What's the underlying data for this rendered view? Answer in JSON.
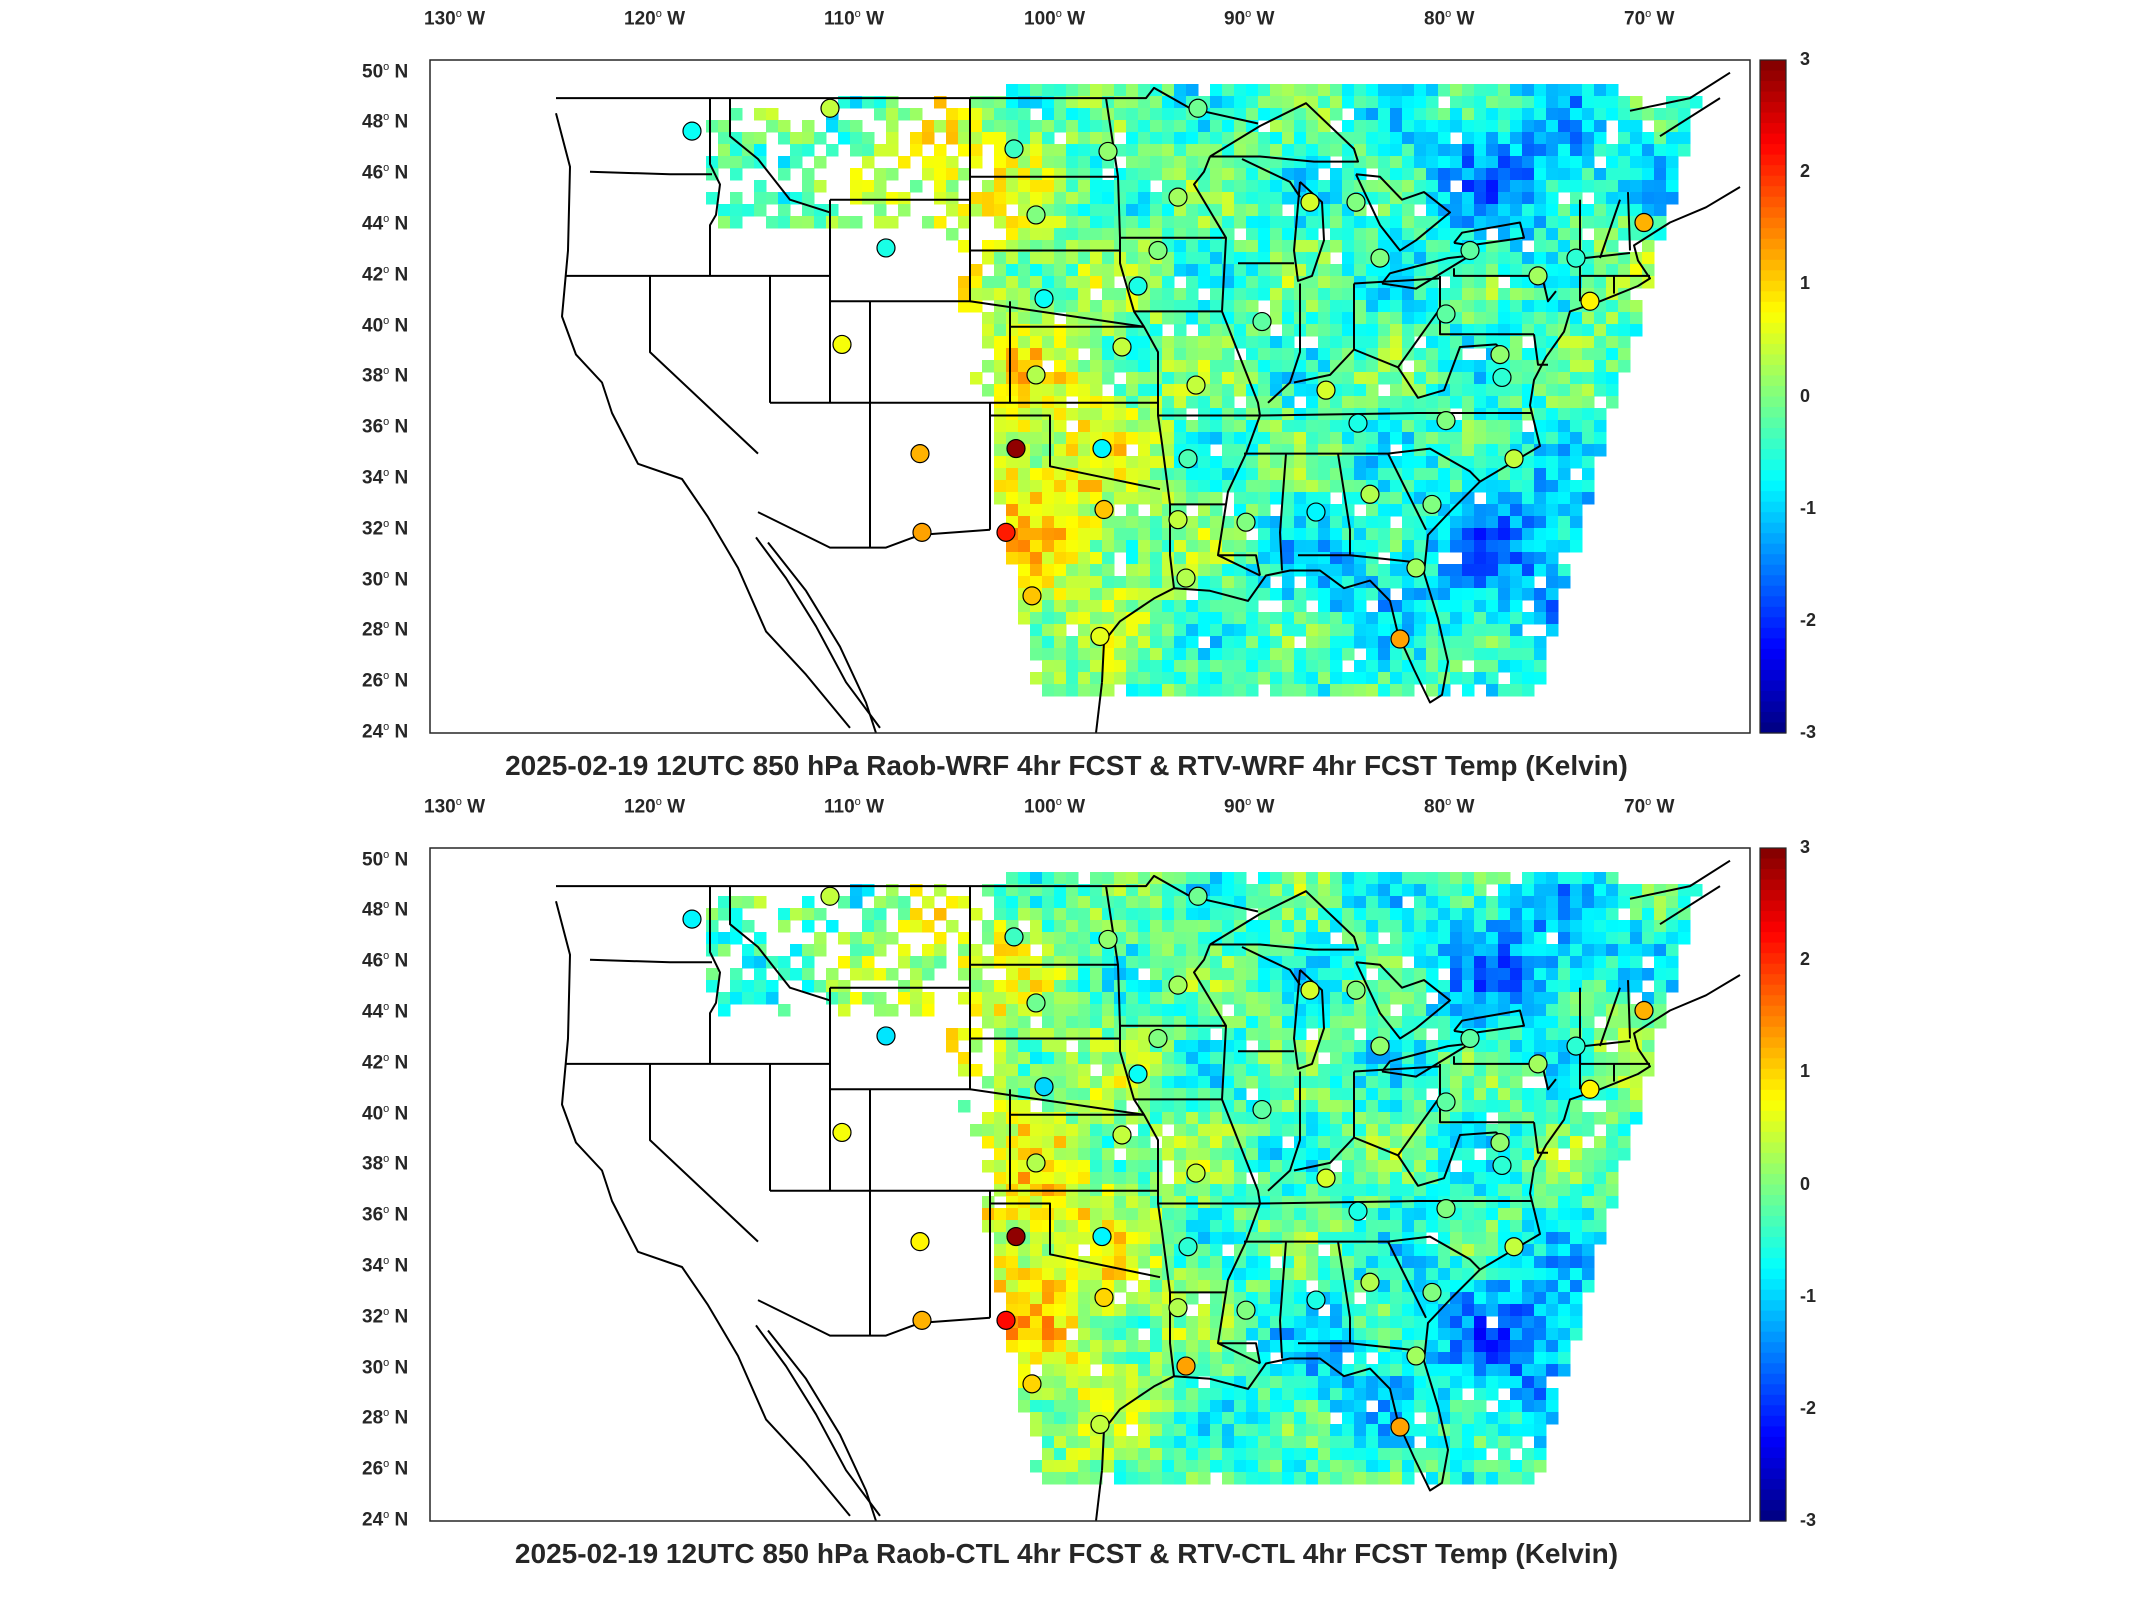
{
  "panels": [
    {
      "title": "2025-02-19 12UTC 850 hPa Raob-WRF 4hr FCST & RTV-WRF 4hr FCST Temp (Kelvin)",
      "seed": 7,
      "stations": [
        [
          -117.9,
          47.7,
          -0.7
        ],
        [
          -111.0,
          48.6,
          0.4
        ],
        [
          -101.8,
          47.0,
          -0.4
        ],
        [
          -100.7,
          44.4,
          0.0
        ],
        [
          -97.1,
          46.9,
          0.1
        ],
        [
          -93.6,
          45.1,
          0.2
        ],
        [
          -108.2,
          43.1,
          -0.6
        ],
        [
          -100.3,
          41.1,
          -0.7
        ],
        [
          -95.6,
          41.6,
          -0.6
        ],
        [
          -94.6,
          43.0,
          0.0
        ],
        [
          -110.4,
          39.3,
          0.7
        ],
        [
          -100.7,
          38.1,
          0.3
        ],
        [
          -96.4,
          39.2,
          0.4
        ],
        [
          -89.4,
          40.2,
          -0.2
        ],
        [
          -92.7,
          37.7,
          0.4
        ],
        [
          -86.2,
          37.5,
          0.5
        ],
        [
          -106.5,
          35.0,
          1.2
        ],
        [
          -101.7,
          35.2,
          2.9
        ],
        [
          -97.4,
          35.2,
          -0.8
        ],
        [
          -93.1,
          34.8,
          -0.3
        ],
        [
          -84.6,
          36.2,
          -0.6
        ],
        [
          -80.2,
          36.3,
          0.0
        ],
        [
          -76.8,
          34.8,
          0.4
        ],
        [
          -106.4,
          31.9,
          1.3
        ],
        [
          -102.2,
          31.9,
          2.1
        ],
        [
          -97.3,
          32.8,
          1.1
        ],
        [
          -93.6,
          32.4,
          0.4
        ],
        [
          -90.2,
          32.3,
          0.0
        ],
        [
          -86.7,
          32.7,
          -0.8
        ],
        [
          -84.0,
          33.4,
          0.3
        ],
        [
          -80.9,
          33.0,
          0.0
        ],
        [
          -100.9,
          29.4,
          1.1
        ],
        [
          -93.2,
          30.1,
          0.3
        ],
        [
          -97.5,
          27.8,
          0.6
        ],
        [
          -82.5,
          27.7,
          1.3
        ],
        [
          -81.7,
          30.5,
          0.2
        ],
        [
          -87.0,
          44.9,
          0.5
        ],
        [
          -84.7,
          44.9,
          0.0
        ],
        [
          -83.5,
          42.7,
          0.0
        ],
        [
          -79.0,
          43.0,
          -0.2
        ],
        [
          -75.6,
          42.0,
          0.2
        ],
        [
          -73.7,
          42.7,
          -0.5
        ],
        [
          -70.3,
          44.1,
          1.2
        ],
        [
          -73.0,
          41.0,
          0.8
        ],
        [
          -80.2,
          40.5,
          -0.2
        ],
        [
          -77.5,
          38.9,
          0.1
        ],
        [
          -77.4,
          38.0,
          -0.5
        ],
        [
          -92.6,
          48.6,
          -0.1
        ]
      ]
    },
    {
      "title": "2025-02-19 12UTC 850 hPa Raob-CTL 4hr FCST & RTV-CTL 4hr FCST Temp (Kelvin)",
      "seed": 19,
      "stations": [
        [
          -117.9,
          47.7,
          -0.8
        ],
        [
          -111.0,
          48.6,
          0.4
        ],
        [
          -101.8,
          47.0,
          -0.4
        ],
        [
          -100.7,
          44.4,
          -0.1
        ],
        [
          -97.1,
          46.9,
          0.1
        ],
        [
          -93.6,
          45.1,
          0.2
        ],
        [
          -108.2,
          43.1,
          -0.9
        ],
        [
          -100.3,
          41.1,
          -1.0
        ],
        [
          -95.6,
          41.6,
          -0.7
        ],
        [
          -94.6,
          43.0,
          0.0
        ],
        [
          -110.4,
          39.3,
          0.7
        ],
        [
          -100.7,
          38.1,
          0.3
        ],
        [
          -96.4,
          39.2,
          0.4
        ],
        [
          -89.4,
          40.2,
          -0.2
        ],
        [
          -92.7,
          37.7,
          0.4
        ],
        [
          -86.2,
          37.5,
          0.5
        ],
        [
          -106.5,
          35.0,
          0.8
        ],
        [
          -101.7,
          35.2,
          2.9
        ],
        [
          -97.4,
          35.2,
          -0.8
        ],
        [
          -93.1,
          34.8,
          -0.5
        ],
        [
          -84.6,
          36.2,
          -0.6
        ],
        [
          -80.2,
          36.3,
          0.0
        ],
        [
          -76.8,
          34.8,
          0.4
        ],
        [
          -106.4,
          31.9,
          1.2
        ],
        [
          -102.2,
          31.9,
          2.2
        ],
        [
          -97.3,
          32.8,
          1.0
        ],
        [
          -93.6,
          32.4,
          0.3
        ],
        [
          -90.2,
          32.3,
          0.0
        ],
        [
          -86.7,
          32.7,
          -0.6
        ],
        [
          -84.0,
          33.4,
          0.3
        ],
        [
          -80.9,
          33.0,
          0.0
        ],
        [
          -100.9,
          29.4,
          1.0
        ],
        [
          -93.2,
          30.1,
          1.3
        ],
        [
          -97.5,
          27.8,
          0.4
        ],
        [
          -82.5,
          27.7,
          1.3
        ],
        [
          -81.7,
          30.5,
          0.2
        ],
        [
          -87.0,
          44.9,
          0.5
        ],
        [
          -84.7,
          44.9,
          0.0
        ],
        [
          -83.5,
          42.7,
          0.1
        ],
        [
          -79.0,
          43.0,
          -0.2
        ],
        [
          -75.6,
          42.0,
          0.2
        ],
        [
          -73.7,
          42.7,
          -0.5
        ],
        [
          -70.3,
          44.1,
          1.2
        ],
        [
          -73.0,
          41.0,
          0.8
        ],
        [
          -80.2,
          40.5,
          -0.2
        ],
        [
          -77.5,
          38.9,
          0.1
        ],
        [
          -77.4,
          38.0,
          -0.5
        ],
        [
          -92.6,
          48.6,
          -0.1
        ]
      ]
    }
  ],
  "lon_ticks": [
    {
      "v": -130,
      "d": "130",
      "h": "W"
    },
    {
      "v": -120,
      "d": "120",
      "h": "W"
    },
    {
      "v": -110,
      "d": "110",
      "h": "W"
    },
    {
      "v": -100,
      "d": "100",
      "h": "W"
    },
    {
      "v": -90,
      "d": "90",
      "h": "W"
    },
    {
      "v": -80,
      "d": "80",
      "h": "W"
    },
    {
      "v": -70,
      "d": "70",
      "h": "W"
    }
  ],
  "lat_ticks": [
    {
      "v": 50,
      "d": "50",
      "h": "N"
    },
    {
      "v": 48,
      "d": "48",
      "h": "N"
    },
    {
      "v": 46,
      "d": "46",
      "h": "N"
    },
    {
      "v": 44,
      "d": "44",
      "h": "N"
    },
    {
      "v": 42,
      "d": "42",
      "h": "N"
    },
    {
      "v": 40,
      "d": "40",
      "h": "N"
    },
    {
      "v": 38,
      "d": "38",
      "h": "N"
    },
    {
      "v": 36,
      "d": "36",
      "h": "N"
    },
    {
      "v": 34,
      "d": "34",
      "h": "N"
    },
    {
      "v": 32,
      "d": "32",
      "h": "N"
    },
    {
      "v": 30,
      "d": "30",
      "h": "N"
    },
    {
      "v": 28,
      "d": "28",
      "h": "N"
    },
    {
      "v": 26,
      "d": "26",
      "h": "N"
    },
    {
      "v": 24,
      "d": "24",
      "h": "N"
    }
  ],
  "colorbar": {
    "min": -3,
    "max": 3,
    "ticks": [
      "3",
      "2",
      "1",
      "0",
      "-1",
      "-2",
      "-3"
    ],
    "colormap": "jet"
  }
}
